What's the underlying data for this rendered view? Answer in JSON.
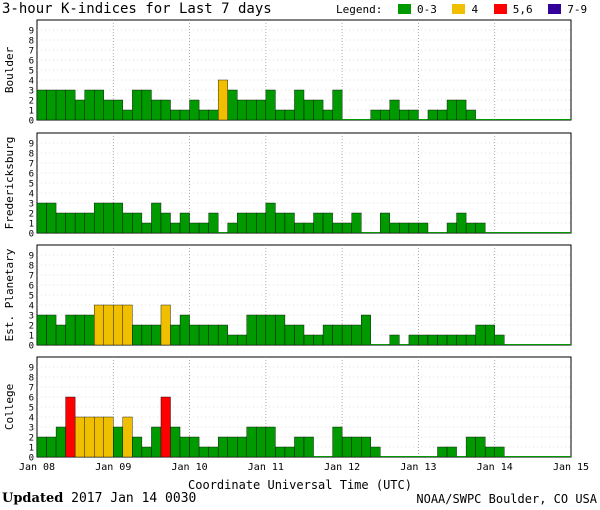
{
  "title": "3-hour K-indices for Last 7 days",
  "legend": {
    "label": "Legend:",
    "items": [
      {
        "label": "0-3",
        "color": "#009900"
      },
      {
        "label": "4",
        "color": "#f0c000"
      },
      {
        "label": "5,6",
        "color": "#ff0000"
      },
      {
        "label": "7-9",
        "color": "#330099"
      }
    ]
  },
  "footer": {
    "updated_label": "Updated",
    "updated_value": "2017 Jan 14 0030",
    "source": "NOAA/SWPC Boulder, CO USA"
  },
  "chart_data": {
    "type": "bar",
    "xlabel": "Coordinate Universal Time (UTC)",
    "x_ticks": [
      "Jan 08",
      "Jan 09",
      "Jan 10",
      "Jan 11",
      "Jan 12",
      "Jan 13",
      "Jan 14",
      "Jan 15"
    ],
    "ylim": [
      0,
      9
    ],
    "y_ticks": [
      "0",
      "1",
      "2",
      "3",
      "4",
      "5",
      "6",
      "7",
      "8",
      "9"
    ],
    "grid": true,
    "bars_per_day": 8,
    "panels": [
      {
        "name": "Boulder",
        "values": [
          3,
          3,
          3,
          3,
          2,
          3,
          3,
          2,
          2,
          1,
          3,
          3,
          2,
          2,
          1,
          1,
          2,
          1,
          1,
          4,
          3,
          2,
          2,
          2,
          3,
          1,
          1,
          3,
          2,
          2,
          1,
          3,
          0,
          0,
          0,
          1,
          1,
          2,
          1,
          1,
          0,
          1,
          1,
          2,
          2,
          1,
          0,
          0,
          0,
          0,
          0,
          0,
          0,
          0,
          0,
          0
        ]
      },
      {
        "name": "Fredericksburg",
        "values": [
          3,
          3,
          2,
          2,
          2,
          2,
          3,
          3,
          3,
          2,
          2,
          1,
          3,
          2,
          1,
          2,
          1,
          1,
          2,
          0,
          1,
          2,
          2,
          2,
          3,
          2,
          2,
          1,
          1,
          2,
          2,
          1,
          1,
          2,
          0,
          0,
          2,
          1,
          1,
          1,
          1,
          0,
          0,
          1,
          2,
          1,
          1,
          0,
          0,
          0,
          0,
          0,
          0,
          0,
          0,
          0
        ]
      },
      {
        "name": "Est. Planetary",
        "values": [
          3,
          3,
          2,
          3,
          3,
          3,
          4,
          4,
          4,
          4,
          2,
          2,
          2,
          4,
          2,
          3,
          2,
          2,
          2,
          2,
          1,
          1,
          3,
          3,
          3,
          3,
          2,
          2,
          1,
          1,
          2,
          2,
          2,
          2,
          3,
          0,
          0,
          1,
          0,
          1,
          1,
          1,
          1,
          1,
          1,
          1,
          2,
          2,
          1,
          0,
          0,
          0,
          0,
          0,
          0,
          0
        ]
      },
      {
        "name": "College",
        "values": [
          2,
          2,
          3,
          6,
          4,
          4,
          4,
          4,
          3,
          4,
          2,
          1,
          3,
          6,
          3,
          2,
          2,
          1,
          1,
          2,
          2,
          2,
          3,
          3,
          3,
          1,
          1,
          2,
          2,
          0,
          0,
          3,
          2,
          2,
          2,
          1,
          0,
          0,
          0,
          0,
          0,
          0,
          1,
          1,
          0,
          2,
          2,
          1,
          1,
          0,
          0,
          0,
          0,
          0,
          0,
          0
        ]
      }
    ]
  }
}
